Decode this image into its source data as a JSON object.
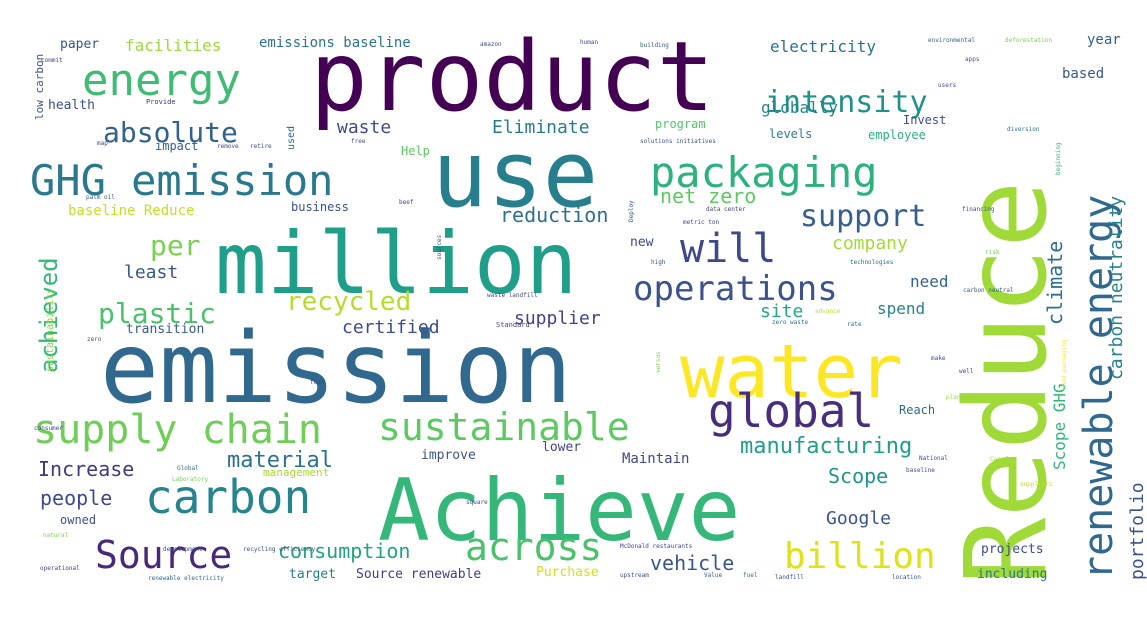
{
  "cloud": {
    "words": [
      {
        "text": "product",
        "color": "#440154"
      },
      {
        "text": "Reduce",
        "color": "#a0da39"
      },
      {
        "text": "emission",
        "color": "#31688e"
      },
      {
        "text": "million",
        "color": "#1f9e89"
      },
      {
        "text": "use",
        "color": "#277f8e"
      },
      {
        "text": "water",
        "color": "#fde725"
      },
      {
        "text": "Achieve",
        "color": "#35b779"
      },
      {
        "text": "GHG emission",
        "color": "#2a788e"
      },
      {
        "text": "energy",
        "color": "#3fbc73"
      },
      {
        "text": "packaging",
        "color": "#2db27d"
      },
      {
        "text": "renewable energy",
        "color": "#31688e"
      },
      {
        "text": "global",
        "color": "#472d7b"
      },
      {
        "text": "supply chain",
        "color": "#6ece58"
      },
      {
        "text": "sustainable",
        "color": "#5ec962"
      },
      {
        "text": "carbon",
        "color": "#25848e"
      },
      {
        "text": "Source",
        "color": "#482878"
      },
      {
        "text": "across",
        "color": "#4ac16d"
      },
      {
        "text": "billion",
        "color": "#dde318"
      },
      {
        "text": "intensity",
        "color": "#21918c"
      },
      {
        "text": "absolute",
        "color": "#33638d"
      },
      {
        "text": "will",
        "color": "#3e4989"
      },
      {
        "text": "operations",
        "color": "#3b528b"
      },
      {
        "text": "support",
        "color": "#355f8d"
      },
      {
        "text": "plastic",
        "color": "#4ac16d"
      },
      {
        "text": "achieved",
        "color": "#35b779"
      },
      {
        "text": "per",
        "color": "#7ad151"
      },
      {
        "text": "recycled",
        "color": "#b5de2b"
      },
      {
        "text": "manufacturing",
        "color": "#1f9e89"
      },
      {
        "text": "material",
        "color": "#2c728e"
      },
      {
        "text": "consumption",
        "color": "#20a386"
      },
      {
        "text": "vehicle",
        "color": "#39568c"
      },
      {
        "text": "Increase",
        "color": "#453781"
      },
      {
        "text": "people",
        "color": "#3e4a89"
      },
      {
        "text": "Scope",
        "color": "#1f958b"
      },
      {
        "text": "Google",
        "color": "#3a548c"
      },
      {
        "text": "reduction",
        "color": "#2e6e8e"
      },
      {
        "text": "net zero",
        "color": "#5ec962"
      },
      {
        "text": "company",
        "color": "#a5db36"
      },
      {
        "text": "least",
        "color": "#38588c"
      },
      {
        "text": "supplier",
        "color": "#414487"
      },
      {
        "text": "certified",
        "color": "#3d4e8a"
      },
      {
        "text": "site",
        "color": "#22a884"
      },
      {
        "text": "climate",
        "color": "#2e6f8e"
      },
      {
        "text": "portfolio",
        "color": "#3b528b"
      },
      {
        "text": "carbon neutrality",
        "color": "#26828e"
      },
      {
        "text": "Scope GHG",
        "color": "#31b57b"
      },
      {
        "text": "need",
        "color": "#32658e"
      },
      {
        "text": "spend",
        "color": "#26828e"
      },
      {
        "text": "waste",
        "color": "#3e4c8a"
      },
      {
        "text": "Eliminate",
        "color": "#287c8e"
      },
      {
        "text": "globally",
        "color": "#25838e"
      },
      {
        "text": "electricity",
        "color": "#2c718e"
      },
      {
        "text": "facilities",
        "color": "#9bd93c"
      },
      {
        "text": "emissions baseline",
        "color": "#2c738e"
      },
      {
        "text": "paper",
        "color": "#3a538b"
      },
      {
        "text": "baseline Reduce",
        "color": "#c2df23"
      },
      {
        "text": "transition",
        "color": "#365d8d"
      },
      {
        "text": "Maintain",
        "color": "#3e4a89"
      },
      {
        "text": "improve",
        "color": "#3a548c"
      },
      {
        "text": "lower",
        "color": "#404688"
      },
      {
        "text": "Source renewable",
        "color": "#433e85"
      },
      {
        "text": "target",
        "color": "#277e8e"
      },
      {
        "text": "Purchase",
        "color": "#d2e21b"
      },
      {
        "text": "including",
        "color": "#2a768e"
      },
      {
        "text": "projects",
        "color": "#3d4d8a"
      },
      {
        "text": "based",
        "color": "#38598c"
      },
      {
        "text": "year",
        "color": "#34608d"
      },
      {
        "text": "health",
        "color": "#3c4f8a"
      },
      {
        "text": "impact",
        "color": "#355e8d"
      },
      {
        "text": "employee",
        "color": "#2ab07f"
      },
      {
        "text": "levels",
        "color": "#287d8e"
      },
      {
        "text": "program",
        "color": "#52c569"
      },
      {
        "text": "Invest",
        "color": "#3c508b"
      },
      {
        "text": "Help",
        "color": "#5ec962"
      },
      {
        "text": "business",
        "color": "#3b518b"
      },
      {
        "text": "new",
        "color": "#3e4989"
      },
      {
        "text": "management",
        "color": "#a8db34"
      },
      {
        "text": "owned",
        "color": "#3b528b"
      },
      {
        "text": "Reach",
        "color": "#2e6d8e"
      },
      {
        "text": "low carbon",
        "color": "#3a548c"
      },
      {
        "text": "sustainability",
        "color": "#7fd34e"
      },
      {
        "text": "used",
        "color": "#33628d"
      },
      {
        "text": "amazon",
        "color": "#3b528b"
      },
      {
        "text": "human",
        "color": "#3c4f8a"
      },
      {
        "text": "building",
        "color": "#365c8d"
      },
      {
        "text": "environmental",
        "color": "#33638d"
      },
      {
        "text": "deforestation",
        "color": "#7ad151"
      },
      {
        "text": "Provide",
        "color": "#453781"
      },
      {
        "text": "solutions initiatives",
        "color": "#3b528b"
      },
      {
        "text": "palm oil",
        "color": "#38588c"
      },
      {
        "text": "financing",
        "color": "#3d4e8a"
      },
      {
        "text": "technologies",
        "color": "#2c718e"
      },
      {
        "text": "data center",
        "color": "#404588"
      },
      {
        "text": "waste landfill",
        "color": "#3f4889"
      },
      {
        "text": "Standard",
        "color": "#414487"
      },
      {
        "text": "zero waste",
        "color": "#2a768e"
      },
      {
        "text": "carbon neutral",
        "color": "#355f8d"
      },
      {
        "text": "risk",
        "color": "#6ece58"
      },
      {
        "text": "Global",
        "color": "#2d708e"
      },
      {
        "text": "Laboratory",
        "color": "#75d054"
      },
      {
        "text": "development",
        "color": "#3e4c8a"
      },
      {
        "text": "recycling efficiency",
        "color": "#3c4f8a"
      },
      {
        "text": "renewable electricity",
        "color": "#2f6b8e"
      },
      {
        "text": "McDonald restaurants",
        "color": "#3f4788"
      },
      {
        "text": "upstream",
        "color": "#3e4989"
      },
      {
        "text": "Value",
        "color": "#3b528b"
      },
      {
        "text": "fuel",
        "color": "#2a788e"
      },
      {
        "text": "landfill",
        "color": "#39568c"
      },
      {
        "text": "location",
        "color": "#3a538b"
      },
      {
        "text": "operational",
        "color": "#3f4889"
      },
      {
        "text": "natural",
        "color": "#7ad151"
      },
      {
        "text": "consumer",
        "color": "#3e4989"
      },
      {
        "text": "Deploy",
        "color": "#3b528b"
      },
      {
        "text": "metric ton",
        "color": "#3e4989"
      },
      {
        "text": "beginning",
        "color": "#35b779"
      },
      {
        "text": "good packaging",
        "color": "#fde725"
      },
      {
        "text": "diversion",
        "color": "#2c718e"
      },
      {
        "text": "square",
        "color": "#3b528b"
      },
      {
        "text": "rate",
        "color": "#2c718e"
      },
      {
        "text": "plant",
        "color": "#9bd93c"
      },
      {
        "text": "sources",
        "color": "#3e4989"
      },
      {
        "text": "high",
        "color": "#3b528b"
      },
      {
        "text": "beef",
        "color": "#414487"
      },
      {
        "text": "food",
        "color": "#3e4989"
      },
      {
        "text": "make",
        "color": "#3c508b"
      },
      {
        "text": "well",
        "color": "#3c508b"
      },
      {
        "text": "advance",
        "color": "#c2df23"
      },
      {
        "text": "Canada",
        "color": "#9bd93c"
      },
      {
        "text": "suppliers",
        "color": "#c2df23"
      },
      {
        "text": "National",
        "color": "#3b528b"
      },
      {
        "text": "baseline",
        "color": "#3b528b"
      },
      {
        "text": "versus",
        "color": "#7fd34e"
      },
      {
        "text": "free",
        "color": "#3e4989"
      },
      {
        "text": "remove",
        "color": "#3e4989"
      },
      {
        "text": "retire",
        "color": "#3b528b"
      },
      {
        "text": "map",
        "color": "#3e4989"
      },
      {
        "text": "zero",
        "color": "#3b528b"
      },
      {
        "text": "users",
        "color": "#3e4989"
      },
      {
        "text": "apps",
        "color": "#3b528b"
      },
      {
        "text": "commit",
        "color": "#3e4989"
      }
    ]
  }
}
